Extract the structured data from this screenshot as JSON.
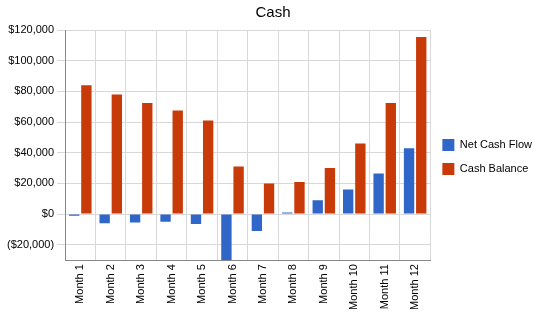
{
  "chart_data": {
    "type": "bar",
    "title": "Cash",
    "categories": [
      "Month 1",
      "Month 2",
      "Month 3",
      "Month 4",
      "Month 5",
      "Month 6",
      "Month 7",
      "Month 8",
      "Month 9",
      "Month 10",
      "Month 11",
      "Month 12"
    ],
    "series": [
      {
        "name": "Net Cash Flow",
        "color": "#2f66c8",
        "values": [
          -1000,
          -6000,
          -5500,
          -5000,
          -6500,
          -30000,
          -11000,
          1000,
          9000,
          16000,
          26500,
          43000
        ]
      },
      {
        "name": "Cash Balance",
        "color": "#c83a08",
        "values": [
          84000,
          78000,
          72500,
          67500,
          61000,
          31000,
          20000,
          21000,
          30000,
          46000,
          72500,
          115500
        ]
      }
    ],
    "ylim": [
      -30000,
      120000
    ],
    "yticks": [
      {
        "value": -20000,
        "label": "($20,000)"
      },
      {
        "value": 0,
        "label": "$0"
      },
      {
        "value": 20000,
        "label": "$20,000"
      },
      {
        "value": 40000,
        "label": "$40,000"
      },
      {
        "value": 60000,
        "label": "$60,000"
      },
      {
        "value": 80000,
        "label": "$80,000"
      },
      {
        "value": 100000,
        "label": "$100,000"
      },
      {
        "value": 120000,
        "label": "$120,000"
      }
    ],
    "grid": true,
    "legend": "right"
  }
}
